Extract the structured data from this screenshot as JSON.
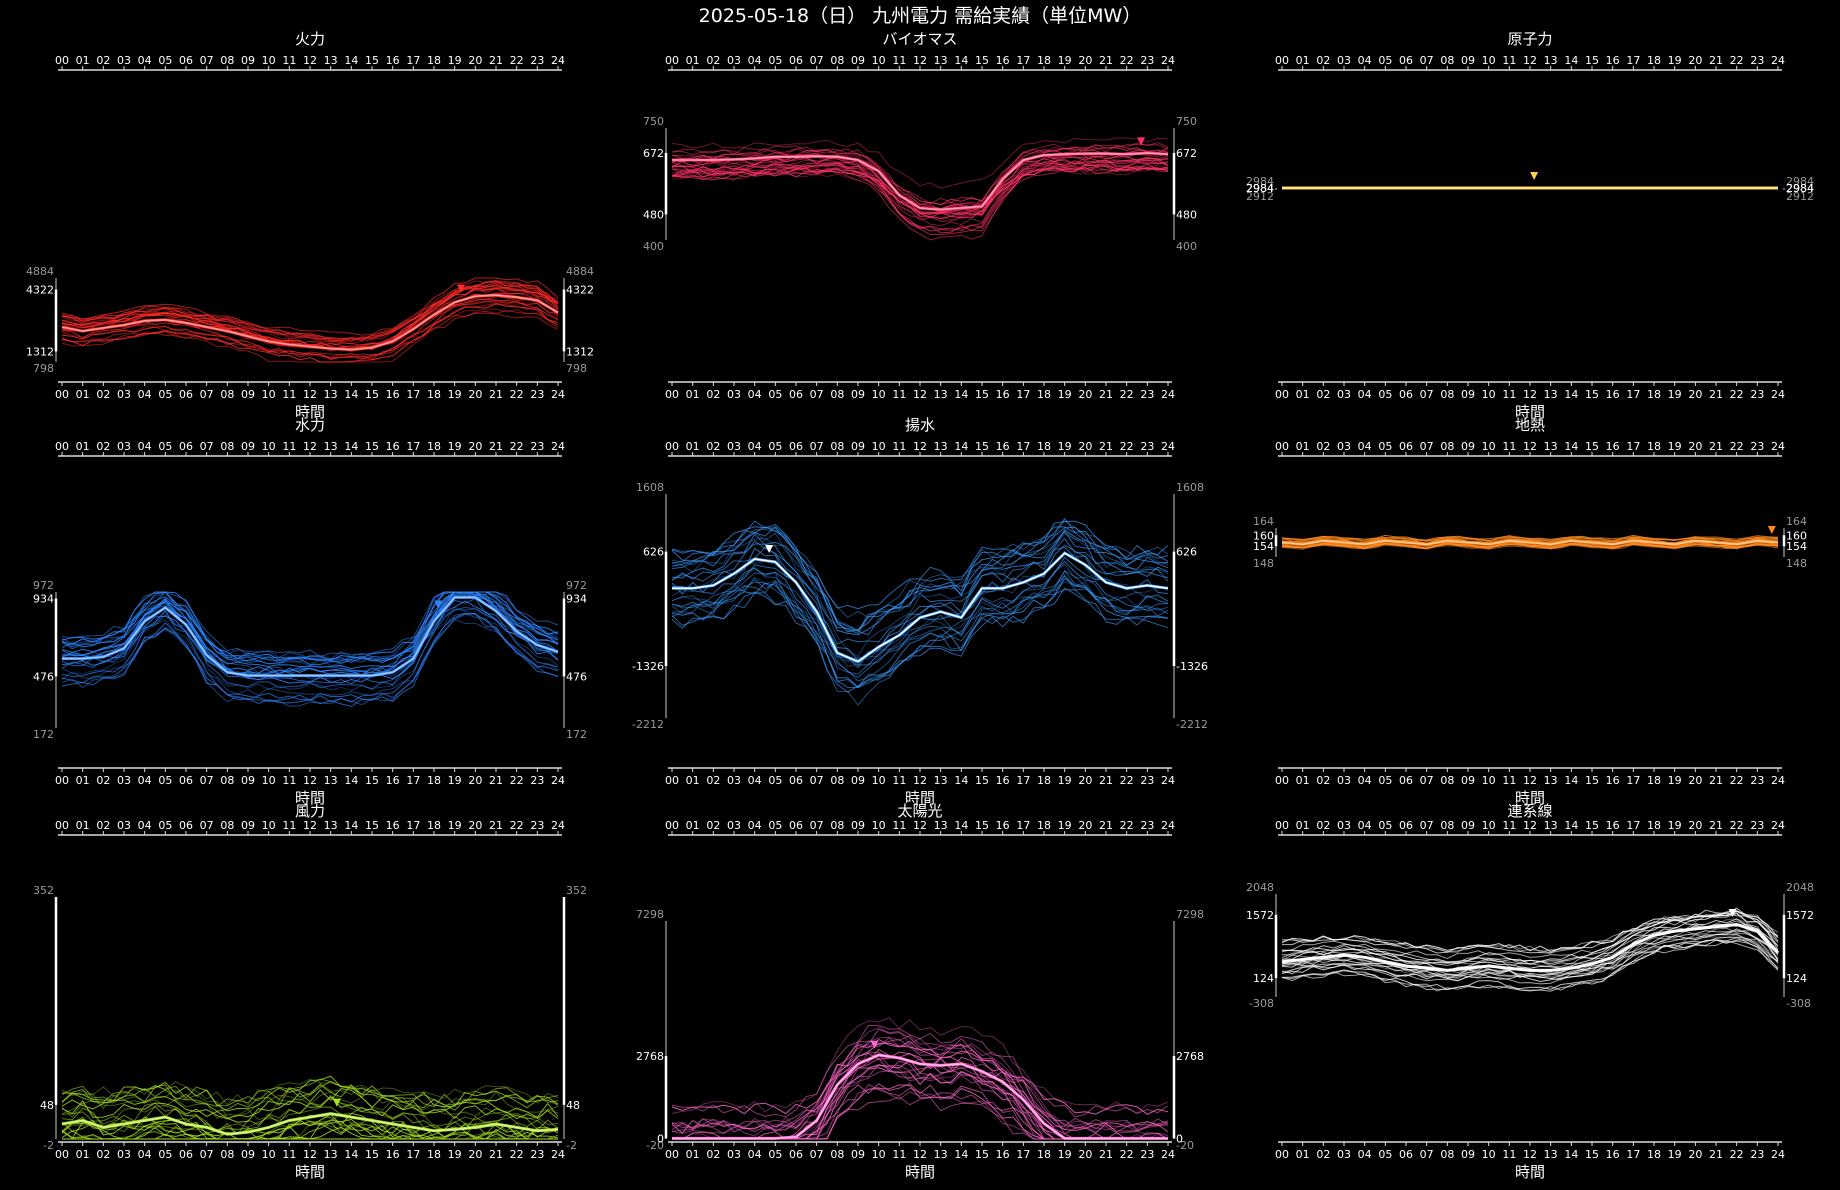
{
  "title": "2025-05-18（日） 九州電力 需給実績（単位MW）",
  "hours": [
    "00",
    "01",
    "02",
    "03",
    "04",
    "05",
    "06",
    "07",
    "08",
    "09",
    "10",
    "11",
    "12",
    "13",
    "14",
    "15",
    "16",
    "17",
    "18",
    "19",
    "20",
    "21",
    "22",
    "23",
    "24"
  ],
  "chart_data": [
    {
      "type": "line",
      "name": "火力",
      "xlabel": "時間",
      "color": "#ff2a2a",
      "ymin": 798,
      "ymax": 4884,
      "ylabels_outer": [
        "4884",
        "798"
      ],
      "ylabels_inner": [
        "4322",
        "1312"
      ],
      "grid": false,
      "today": [
        2500,
        2300,
        2450,
        2600,
        2800,
        2850,
        2700,
        2500,
        2300,
        2050,
        1800,
        1650,
        1550,
        1450,
        1400,
        1500,
        1800,
        2400,
        3100,
        3700,
        4000,
        4050,
        3950,
        3800,
        3200
      ],
      "marker_hour": 19.3,
      "has_xlabel": true
    },
    {
      "type": "line",
      "name": "バイオマス",
      "xlabel": "",
      "color": "#ff3366",
      "ymin": 400,
      "ymax": 750,
      "ylabels_outer": [
        "750",
        "400"
      ],
      "ylabels_inner": [
        "672",
        "480"
      ],
      "grid": false,
      "today": [
        650,
        650,
        650,
        652,
        655,
        660,
        660,
        662,
        660,
        650,
        615,
        540,
        500,
        495,
        500,
        505,
        590,
        650,
        665,
        668,
        670,
        670,
        668,
        672,
        668
      ],
      "marker_hour": 22.7,
      "has_xlabel": false
    },
    {
      "type": "line",
      "name": "原子力",
      "xlabel": "時間",
      "color": "#ffd23f",
      "ymin": 2912,
      "ymax": 2984,
      "ylabels_outer": [
        "2984",
        "2912"
      ],
      "ylabels_inner": [
        "2984",
        "2984"
      ],
      "grid": false,
      "today": [
        2984,
        2984,
        2984,
        2984,
        2984,
        2984,
        2984,
        2984,
        2984,
        2984,
        2984,
        2984,
        2984,
        2984,
        2984,
        2984,
        2984,
        2984,
        2984,
        2984,
        2984,
        2984,
        2984,
        2984,
        2984
      ],
      "marker_hour": 12.2,
      "has_xlabel": true
    },
    {
      "type": "line",
      "name": "水力",
      "xlabel": "時間",
      "color": "#2e86ff",
      "ymin": 172,
      "ymax": 972,
      "ylabels_outer": [
        "972",
        "172"
      ],
      "ylabels_inner": [
        "934",
        "476"
      ],
      "grid": false,
      "today": [
        580,
        580,
        590,
        640,
        800,
        880,
        780,
        600,
        500,
        480,
        480,
        480,
        480,
        480,
        480,
        480,
        500,
        580,
        800,
        940,
        940,
        860,
        740,
        660,
        620
      ],
      "marker_hour": 18.2,
      "has_xlabel": true
    },
    {
      "type": "line",
      "name": "揚水",
      "xlabel": "時間",
      "color": "#3a9bff",
      "ymin": -2212,
      "ymax": 1608,
      "ylabels_outer": [
        "1608",
        "-2212"
      ],
      "ylabels_inner": [
        "626",
        "-1326"
      ],
      "grid": false,
      "today": [
        0,
        0,
        50,
        250,
        500,
        450,
        100,
        -400,
        -1100,
        -1250,
        -1000,
        -800,
        -500,
        -400,
        -500,
        0,
        0,
        100,
        250,
        600,
        400,
        100,
        0,
        50,
        0
      ],
      "marker_hour": 4.7,
      "has_xlabel": true
    },
    {
      "type": "line",
      "name": "地熱",
      "xlabel": "時間",
      "color": "#ff8a1f",
      "ymin": 148,
      "ymax": 164,
      "ylabels_outer": [
        "164",
        "148"
      ],
      "ylabels_inner": [
        "160",
        "154"
      ],
      "grid": false,
      "today": [
        156,
        155,
        157,
        156,
        155,
        157,
        156,
        155,
        157,
        156,
        155,
        157,
        156,
        155,
        157,
        156,
        155,
        157,
        156,
        155,
        157,
        156,
        155,
        157,
        156
      ],
      "marker_hour": 23.7,
      "has_xlabel": true
    },
    {
      "type": "line",
      "name": "風力",
      "xlabel": "時間",
      "color": "#a8e21f",
      "ymin": -2,
      "ymax": 352,
      "ylabels_outer": [
        "352",
        "-2"
      ],
      "ylabels_inner": [
        "",
        "48"
      ],
      "grid": false,
      "today": [
        20,
        25,
        15,
        20,
        25,
        30,
        20,
        15,
        5,
        8,
        15,
        25,
        30,
        35,
        30,
        25,
        20,
        15,
        10,
        12,
        15,
        20,
        15,
        10,
        12
      ],
      "marker_hour": 13.3,
      "has_xlabel": true
    },
    {
      "type": "line",
      "name": "太陽光",
      "xlabel": "時間",
      "color": "#ff66cc",
      "ymin": -20,
      "ymax": 7298,
      "ylabels_outer": [
        "7298",
        "-20"
      ],
      "ylabels_inner": [
        "2768",
        "0"
      ],
      "grid": false,
      "today": [
        0,
        0,
        0,
        0,
        0,
        0,
        50,
        600,
        1800,
        2500,
        2800,
        2700,
        2500,
        2450,
        2500,
        2250,
        1900,
        1300,
        500,
        0,
        0,
        0,
        0,
        0,
        0
      ],
      "marker_hour": 9.8,
      "has_xlabel": true
    },
    {
      "type": "line",
      "name": "連系線",
      "xlabel": "時間",
      "color": "#ffffff",
      "ymin": -308,
      "ymax": 2048,
      "ylabels_outer": [
        "2048",
        "-308"
      ],
      "ylabels_inner": [
        "1572",
        "124"
      ],
      "grid": false,
      "today": [
        500,
        550,
        600,
        650,
        600,
        500,
        400,
        350,
        300,
        350,
        400,
        350,
        300,
        300,
        350,
        450,
        600,
        900,
        1100,
        1200,
        1250,
        1300,
        1350,
        1200,
        700
      ],
      "marker_hour": 21.8,
      "has_xlabel": true
    }
  ]
}
